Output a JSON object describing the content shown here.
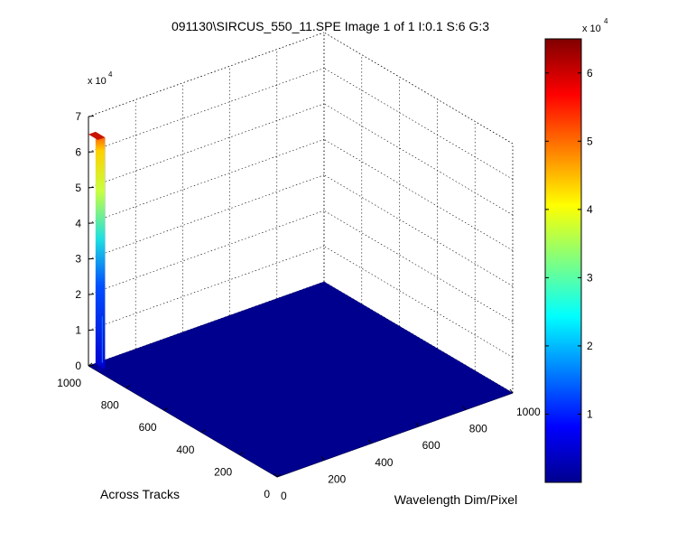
{
  "chart_data": {
    "type": "surface",
    "title": "091130\\SIRCUS_550_11.SPE  Image 1 of 1  I:0.1  S:6  G:3",
    "xlabel": "Wavelength Dim/Pixel",
    "ylabel": "Across Tracks",
    "zlabel": "",
    "xlim": [
      0,
      1000
    ],
    "ylim": [
      0,
      1000
    ],
    "zlim": [
      0,
      70000
    ],
    "x_ticks": [
      0,
      200,
      400,
      600,
      800,
      1000
    ],
    "y_ticks": [
      0,
      200,
      400,
      600,
      800,
      1000
    ],
    "z_ticks": [
      0,
      1,
      2,
      3,
      4,
      5,
      6,
      7
    ],
    "z_multiplier": "x 10",
    "z_multiplier_exp": "4",
    "grid": true,
    "colormap": "jet",
    "peak": {
      "x_range": [
        0,
        30
      ],
      "y_range": [
        950,
        1000
      ],
      "z_max": 65000
    },
    "floor_value": 0,
    "colorbar": {
      "range": [
        0,
        65000
      ],
      "ticks": [
        1,
        2,
        3,
        4,
        5,
        6
      ],
      "multiplier": "x 10",
      "multiplier_exp": "4",
      "placement": "right"
    }
  }
}
